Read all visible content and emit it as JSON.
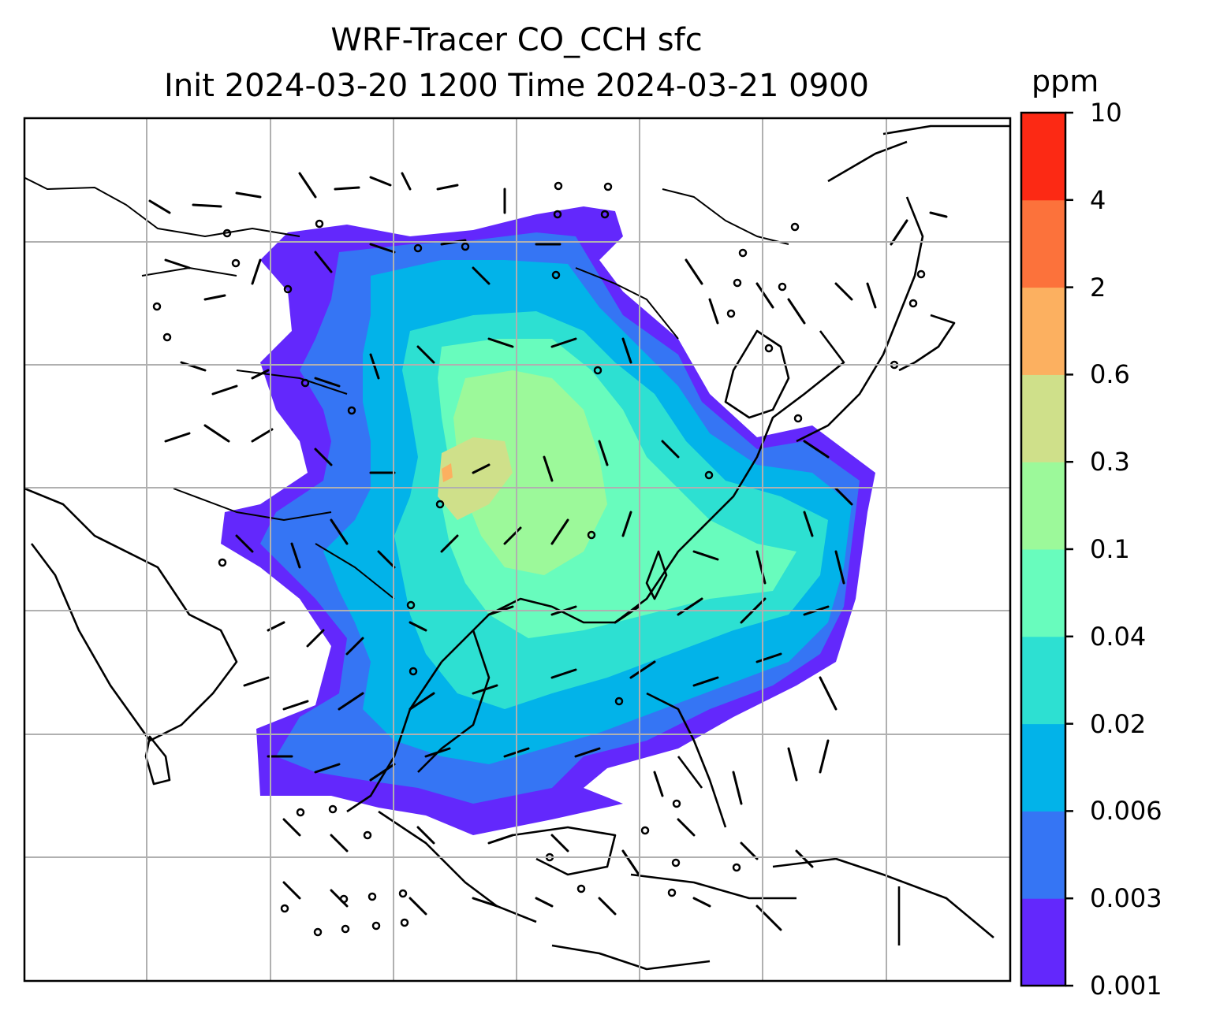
{
  "title_line1": "WRF-Tracer CO_CCH sfc",
  "title_line2": "Init 2024-03-20 1200 Time 2024-03-21 0900",
  "colorbar": {
    "unit": "ppm",
    "levels": [
      "0.001",
      "0.003",
      "0.006",
      "0.02",
      "0.04",
      "0.1",
      "0.3",
      "0.6",
      "2",
      "4",
      "10"
    ],
    "colors": [
      "#6328fc",
      "#3575f4",
      "#02b3e9",
      "#2de0d2",
      "#68fcbd",
      "#9cf99a",
      "#cfe08a",
      "#fcb060",
      "#fc723b",
      "#fc2914"
    ]
  },
  "map": {
    "gridlines": true,
    "coastline_color": "#000000",
    "wind_barbs": true
  }
}
